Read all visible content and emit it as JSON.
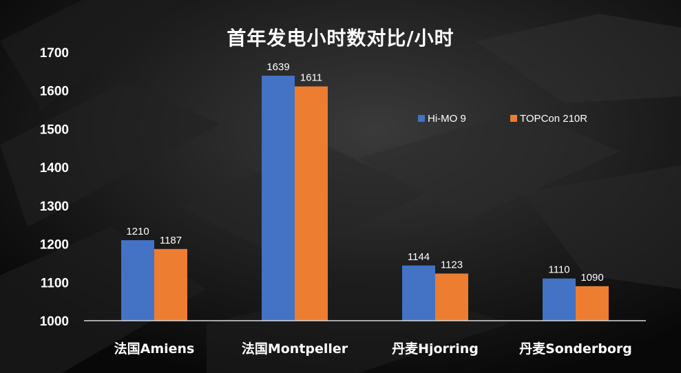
{
  "colors": {
    "background": "#0b0b0b",
    "series_1": "#4472C4",
    "series_2": "#ED7D31",
    "text": "#ffffff",
    "axis": "#d9d9d9"
  },
  "chart_data": {
    "type": "bar",
    "title": "首年发电小时数对比/小时",
    "categories": [
      "法国Amiens",
      "法国Montpeller",
      "丹麦Hjorring",
      "丹麦Sonderborg"
    ],
    "series": [
      {
        "name": "Hi-MO 9",
        "values": [
          1210,
          1639,
          1144,
          1110
        ]
      },
      {
        "name": "TOPCon 210R",
        "values": [
          1187,
          1611,
          1123,
          1090
        ]
      }
    ],
    "ylim": [
      1000,
      1700
    ],
    "yticks": [
      1000,
      1100,
      1200,
      1300,
      1400,
      1500,
      1600,
      1700
    ],
    "grid": false,
    "legend_position": "top-right",
    "data_labels": true
  }
}
